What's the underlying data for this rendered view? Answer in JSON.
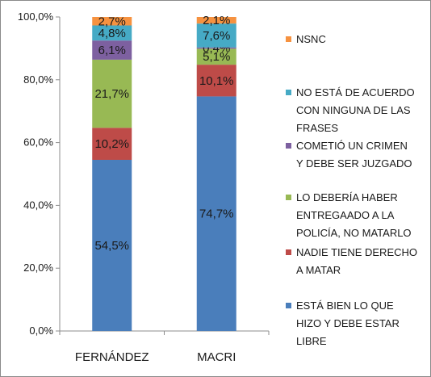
{
  "chart_data": {
    "type": "bar",
    "stacked": true,
    "categories": [
      "FERNÁNDEZ",
      "MACRI"
    ],
    "ylim": [
      0,
      100
    ],
    "yticks": [
      "0,0%",
      "20,0%",
      "40,0%",
      "60,0%",
      "80,0%",
      "100,0%"
    ],
    "grid": false,
    "legend_position": "right",
    "series": [
      {
        "name": "ESTÁ BIEN LO QUE HIZO Y DEBE ESTAR LIBRE",
        "legend_lines": [
          "ESTÁ BIEN LO QUE",
          "HIZO Y DEBE ESTAR",
          "LIBRE"
        ],
        "color": "#4a7ebb",
        "values": [
          54.5,
          74.7
        ],
        "labels": [
          "54,5%",
          "74,7%"
        ]
      },
      {
        "name": "NADIE TIENE DERECHO A MATAR",
        "legend_lines": [
          "NADIE TIENE DERECHO",
          "A MATAR"
        ],
        "color": "#be4b48",
        "values": [
          10.2,
          10.1
        ],
        "labels": [
          "10,2%",
          "10,1%"
        ]
      },
      {
        "name": "LO DEBERÍA HABER ENTREGAADO A LA POLICÍA, NO MATARLO",
        "legend_lines": [
          "LO DEBERÍA HABER",
          "ENTREGAADO A LA",
          "POLICÍA, NO MATARLO"
        ],
        "color": "#98b954",
        "values": [
          21.7,
          5.1
        ],
        "labels": [
          "21,7%",
          "5,1%"
        ]
      },
      {
        "name": "COMETIÓ UN CRIMEN Y DEBE SER JUZGADO",
        "legend_lines": [
          "COMETIÓ UN CRIMEN",
          "Y DEBE SER JUZGADO"
        ],
        "color": "#7d60a0",
        "values": [
          6.1,
          0.4
        ],
        "labels": [
          "6,1%",
          "0,4%"
        ]
      },
      {
        "name": "NO ESTÁ DE ACUERDO CON NINGUNA DE LAS FRASES",
        "legend_lines": [
          "NO ESTÁ DE ACUERDO",
          "CON NINGUNA DE LAS",
          "FRASES"
        ],
        "color": "#46aac5",
        "values": [
          4.8,
          7.6
        ],
        "labels": [
          "4,8%",
          "7,6%"
        ]
      },
      {
        "name": "NSNC",
        "legend_lines": [
          "NSNC"
        ],
        "color": "#f69240",
        "values": [
          2.7,
          2.1
        ],
        "labels": [
          "2,7%",
          "2,1%"
        ]
      }
    ]
  }
}
